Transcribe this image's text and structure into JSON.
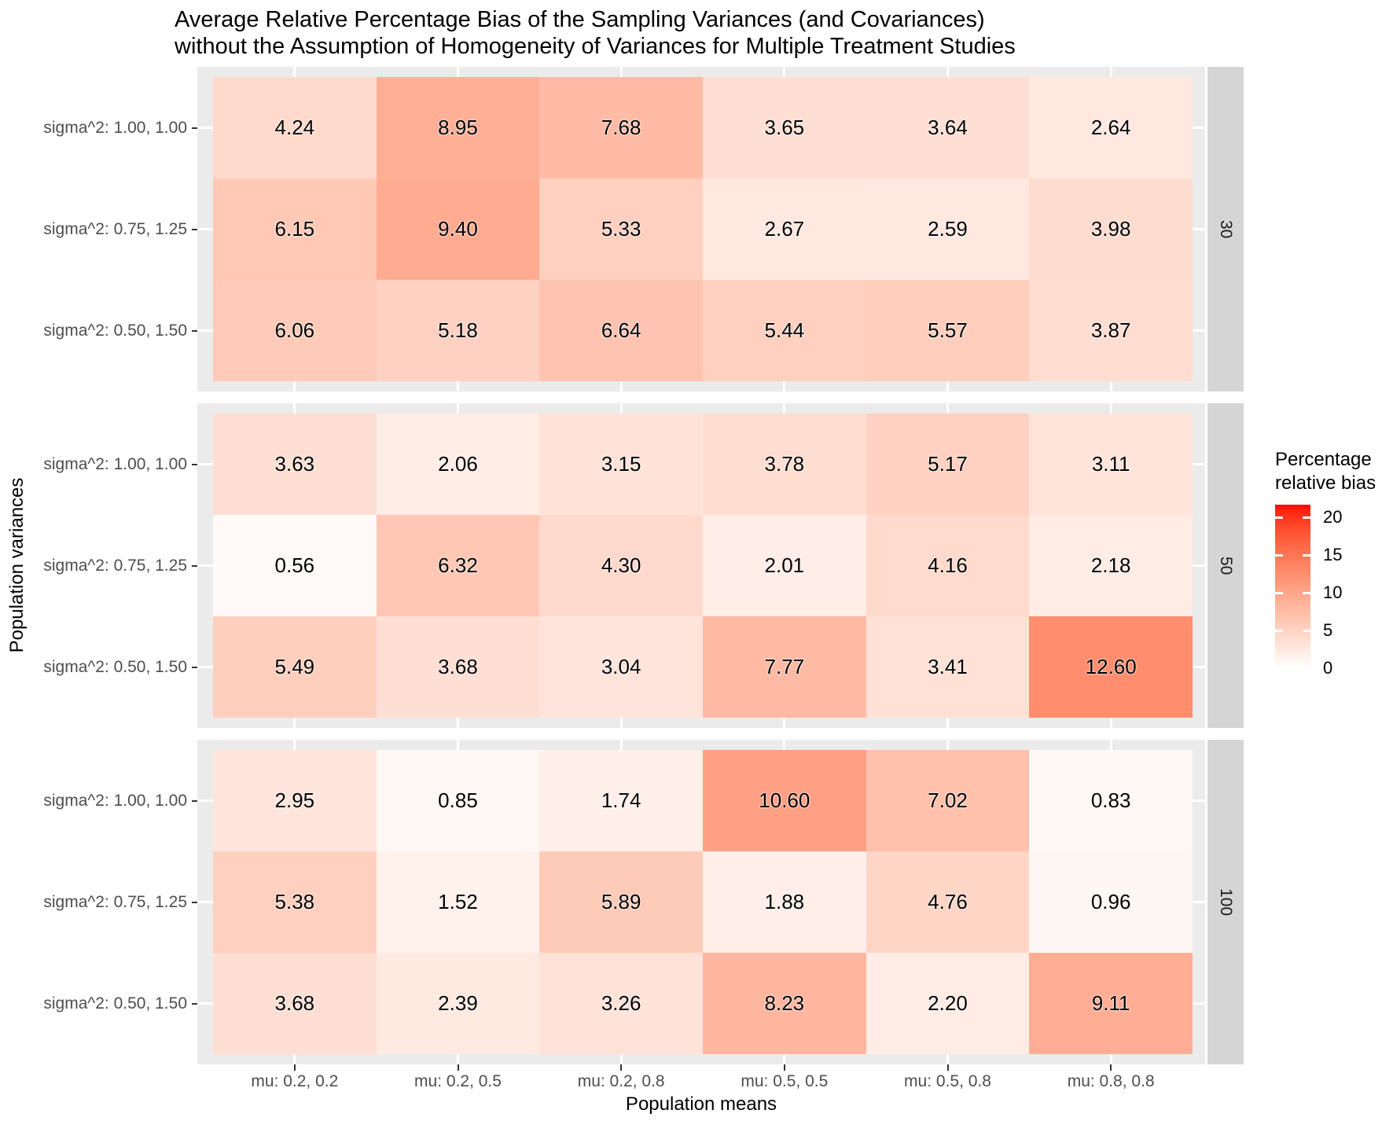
{
  "chart_data": {
    "type": "heatmap",
    "title": "Average Relative Percentage Bias of the Sampling Variances (and Covariances) without the Assumption of Homogeneity of Variances for Multiple Treatment Studies",
    "title_lines": [
      "Average Relative Percentage Bias of the Sampling Variances (and Covariances)",
      "without the Assumption of Homogeneity of Variances for Multiple Treatment Studies"
    ],
    "xlabel": "Population means",
    "ylabel": "Population variances",
    "x_categories": [
      "mu: 0.2, 0.2",
      "mu: 0.2, 0.5",
      "mu: 0.2, 0.8",
      "mu: 0.5, 0.5",
      "mu: 0.5, 0.8",
      "mu: 0.8, 0.8"
    ],
    "y_categories": [
      "sigma^2: 1.00, 1.00",
      "sigma^2: 0.75, 1.25",
      "sigma^2: 0.50, 1.50"
    ],
    "facets": [
      {
        "label": "30",
        "values": [
          [
            4.24,
            8.95,
            7.68,
            3.65,
            3.64,
            2.64
          ],
          [
            6.15,
            9.4,
            5.33,
            2.67,
            2.59,
            3.98
          ],
          [
            6.06,
            5.18,
            6.64,
            5.44,
            5.57,
            3.87
          ]
        ]
      },
      {
        "label": "50",
        "values": [
          [
            3.63,
            2.06,
            3.15,
            3.78,
            5.17,
            3.11
          ],
          [
            0.56,
            6.32,
            4.3,
            2.01,
            4.16,
            2.18
          ],
          [
            5.49,
            3.68,
            3.04,
            7.77,
            3.41,
            12.6
          ]
        ]
      },
      {
        "label": "100",
        "values": [
          [
            2.95,
            0.85,
            1.74,
            10.6,
            7.02,
            0.83
          ],
          [
            5.38,
            1.52,
            5.89,
            1.88,
            4.76,
            0.96
          ],
          [
            3.68,
            2.39,
            3.26,
            8.23,
            2.2,
            9.11
          ]
        ]
      }
    ],
    "fill_scale": {
      "title_lines": [
        "Percentage",
        "relative bias"
      ],
      "low_color": "#FFFFFF",
      "high_color": "#FF0000",
      "domain": [
        0,
        21.7
      ],
      "breaks": [
        0,
        5,
        10,
        15,
        20
      ]
    },
    "value_decimals": 2,
    "grid": "on",
    "legend_position": "right"
  },
  "theme": {
    "panel_bg": "#EBEBEB",
    "strip_bg": "#D5D5D5",
    "grid_color": "#FFFFFF",
    "tick_color": "#333333",
    "axis_label_color": "#4D4D4D",
    "strip_text_color": "#1A1A1A",
    "text_color": "#000000"
  }
}
